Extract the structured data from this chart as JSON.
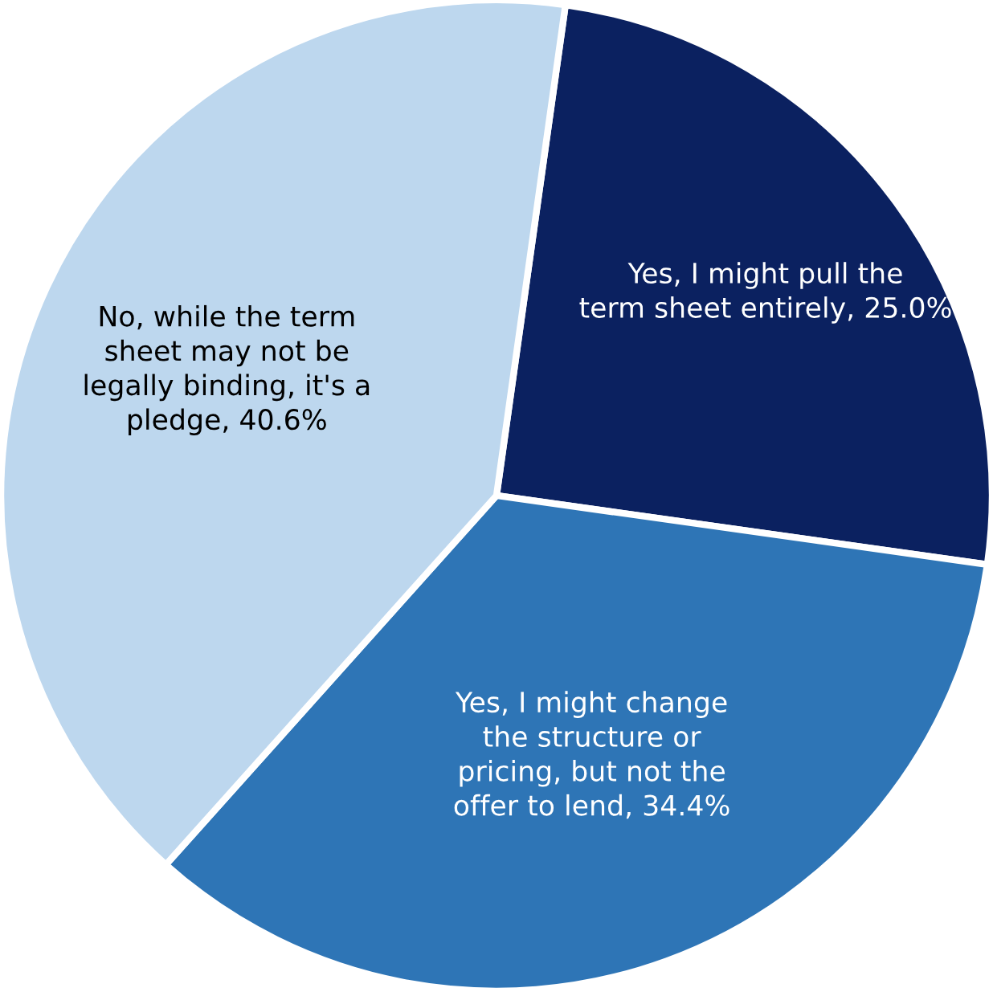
{
  "chart_data": {
    "type": "pie",
    "categories": [
      "Yes, I might pull the\nterm sheet entirely",
      "Yes, I might change\nthe structure or\npricing, but not the\noffer to lend",
      "No, while the term\nsheet may not be\nlegally binding, it's a\npledge"
    ],
    "values": [
      25.0,
      34.4,
      40.6
    ],
    "value_labels": [
      "25.0%",
      "34.4%",
      "40.6%"
    ],
    "colors": [
      "#0b2160",
      "#2e75b6",
      "#bdd7ee"
    ]
  }
}
